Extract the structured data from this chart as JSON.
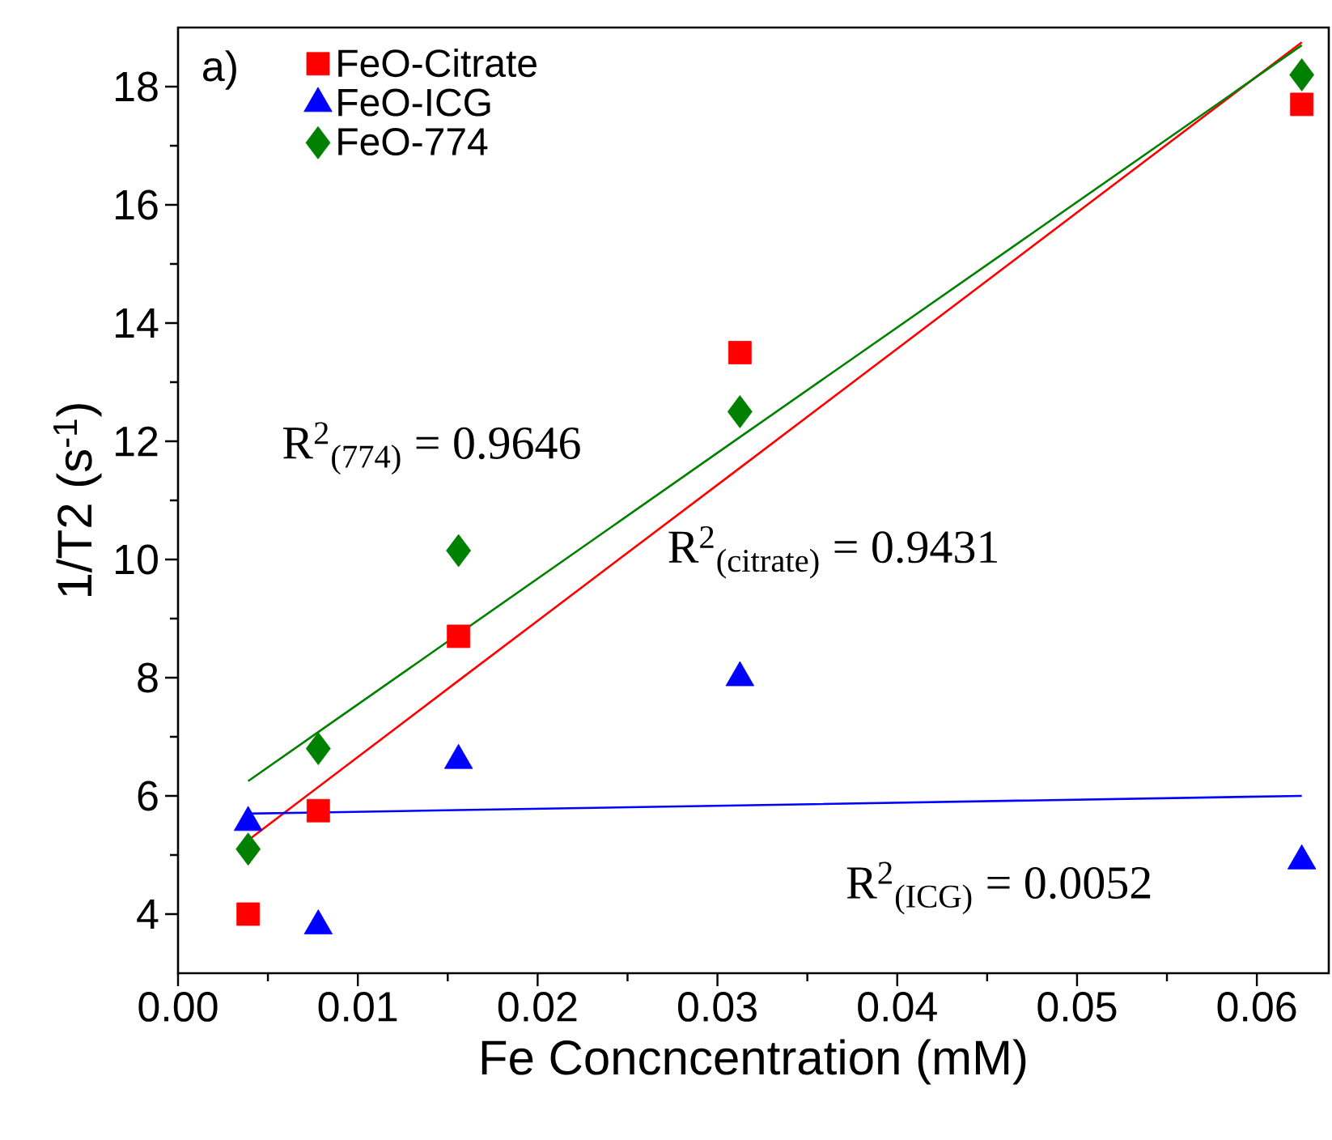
{
  "chart_data": {
    "type": "scatter",
    "xlabel": "Fe Concncentration (mM)",
    "ylabel": "1/T2 (s$^{-1}$)",
    "x": [
      0.0039,
      0.0078,
      0.0156,
      0.03125,
      0.0625
    ],
    "series": [
      {
        "name": "FeO-Citrate",
        "color": "#ff0000",
        "marker": "square",
        "values": [
          4.0,
          5.75,
          8.7,
          13.5,
          17.7
        ]
      },
      {
        "name": "FeO-ICG",
        "color": "#0000ff",
        "marker": "triangle",
        "values": [
          5.55,
          3.8,
          6.6,
          8.0,
          4.9
        ]
      },
      {
        "name": "FeO-774",
        "color": "#008000",
        "marker": "diamond",
        "values": [
          5.1,
          6.8,
          10.15,
          12.5,
          18.2
        ]
      },
      {
        "type": "line",
        "color": "#ff0000",
        "values": [
          5.25,
          6.15,
          7.95,
          11.55,
          18.75
        ]
      },
      {
        "type": "line",
        "color": "#0000ff",
        "values": [
          5.7,
          5.72,
          5.76,
          5.84,
          6.0
        ]
      },
      {
        "type": "line",
        "color": "#008000",
        "values": [
          6.25,
          7.08,
          8.74,
          12.07,
          18.7
        ]
      }
    ],
    "xlim": [
      0,
      0.064
    ],
    "ylim": [
      3,
      19
    ],
    "xticks": [
      {
        "value": 0,
        "label": "0.00"
      },
      {
        "value": 0.01,
        "label": "0.01"
      },
      {
        "value": 0.02,
        "label": "0.02"
      },
      {
        "value": 0.03,
        "label": "0.03"
      },
      {
        "value": 0.04,
        "label": "0.04"
      },
      {
        "value": 0.05,
        "label": "0.05"
      },
      {
        "value": 0.06,
        "label": "0.06"
      }
    ],
    "yticks": [
      4,
      6,
      8,
      10,
      12,
      14,
      16,
      18
    ],
    "legend": "top left",
    "grid": false,
    "annotations": [
      "a)",
      "R$^{2}$$_{(774)}$ = 0.9646",
      "R$^{2}$$_{(citrate)}$ = 0.9431",
      "R$^{2}$$_{(ICG)}$ = 0.0052"
    ]
  }
}
